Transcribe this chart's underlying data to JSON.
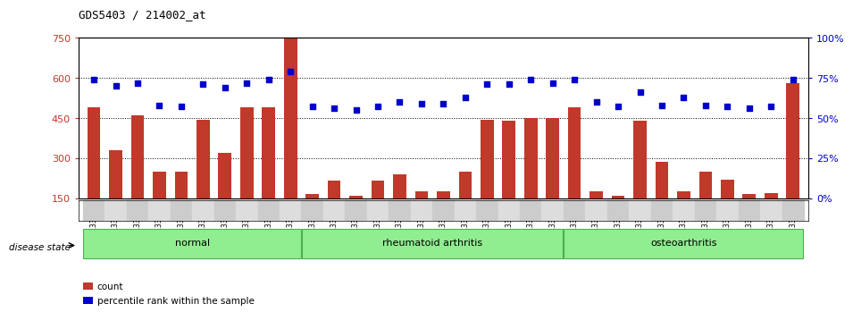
{
  "title": "GDS5403 / 214002_at",
  "samples": [
    "GSM1337304",
    "GSM1337305",
    "GSM1337306",
    "GSM1337307",
    "GSM1337308",
    "GSM1337309",
    "GSM1337310",
    "GSM1337311",
    "GSM1337312",
    "GSM1337313",
    "GSM1337314",
    "GSM1337315",
    "GSM1337316",
    "GSM1337317",
    "GSM1337318",
    "GSM1337319",
    "GSM1337320",
    "GSM1337321",
    "GSM1337322",
    "GSM1337323",
    "GSM1337324",
    "GSM1337325",
    "GSM1337326",
    "GSM1337327",
    "GSM1337328",
    "GSM1337329",
    "GSM1337330",
    "GSM1337331",
    "GSM1337332",
    "GSM1337333",
    "GSM1337334",
    "GSM1337335",
    "GSM1337336"
  ],
  "counts": [
    490,
    330,
    460,
    250,
    250,
    445,
    320,
    490,
    490,
    750,
    165,
    215,
    160,
    215,
    240,
    175,
    175,
    250,
    445,
    440,
    450,
    450,
    490,
    175,
    160,
    440,
    285,
    175,
    250,
    220,
    165,
    170,
    580
  ],
  "percentiles": [
    74,
    70,
    72,
    58,
    57,
    71,
    69,
    72,
    74,
    79,
    57,
    56,
    55,
    57,
    60,
    59,
    59,
    63,
    71,
    71,
    74,
    72,
    74,
    60,
    57,
    66,
    58,
    63,
    58,
    57,
    56,
    57,
    74
  ],
  "groups": [
    {
      "label": "normal",
      "start": 0,
      "end": 9
    },
    {
      "label": "rheumatoid arthritis",
      "start": 10,
      "end": 21
    },
    {
      "label": "osteoarthritis",
      "start": 22,
      "end": 32
    }
  ],
  "ylim_left": [
    150,
    750
  ],
  "ylim_right": [
    0,
    100
  ],
  "yticks_left": [
    150,
    300,
    450,
    600,
    750
  ],
  "yticks_right": [
    0,
    25,
    50,
    75,
    100
  ],
  "bar_color": "#C0392B",
  "dot_color": "#0000CC",
  "group_facecolor": "#90EE90",
  "group_edgecolor": "#4CAF50",
  "label_count": "count",
  "label_percentile": "percentile rank within the sample",
  "disease_state_label": "disease state"
}
